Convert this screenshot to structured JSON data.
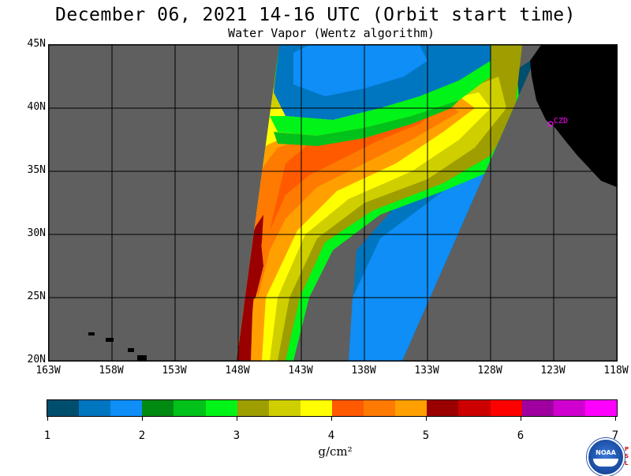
{
  "header": {
    "title": "December 06, 2021  14-16 UTC  (Orbit start time)",
    "subtitle": "Water Vapor (Wentz algorithm)"
  },
  "map": {
    "lon_range": [
      -163,
      -118
    ],
    "lat_range": [
      20,
      45
    ],
    "lat_labels": [
      "45N",
      "40N",
      "35N",
      "30N",
      "25N",
      "20N"
    ],
    "lon_labels": [
      "163W",
      "158W",
      "153W",
      "148W",
      "143W",
      "138W",
      "133W",
      "128W",
      "123W",
      "118W"
    ],
    "station_label": "CZD",
    "colors": {
      "no_data": "#5f5f5f",
      "land": "#000000",
      "grid": "#000000",
      "station": "#ff00ff"
    }
  },
  "colorbar": {
    "units": "g/cm²",
    "labels": [
      "1",
      "2",
      "3",
      "4",
      "5",
      "6",
      "7"
    ],
    "range": [
      1,
      7
    ],
    "colors": [
      "#004e6e",
      "#0076c0",
      "#0e8ef6",
      "#008a12",
      "#00c21a",
      "#00f418",
      "#9e9e00",
      "#cfcf00",
      "#ffff00",
      "#ff5a00",
      "#ff7a00",
      "#ffa000",
      "#9a0000",
      "#cc0000",
      "#ff0000",
      "#a000a0",
      "#d000d0",
      "#ff00ff"
    ]
  },
  "logo": {
    "agency_text": "NOAA",
    "side_text": [
      "P",
      "S",
      "L"
    ]
  }
}
